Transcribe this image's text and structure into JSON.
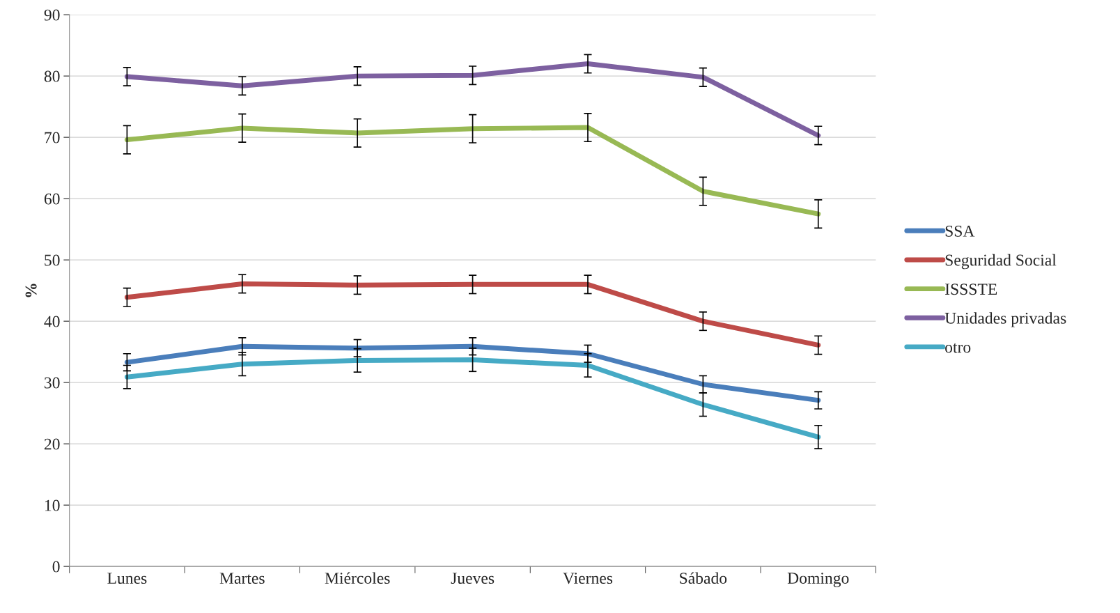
{
  "chart_data": {
    "type": "line",
    "ylabel": "%",
    "categories": [
      "Lunes",
      "Martes",
      "Miércoles",
      "Jueves",
      "Viernes",
      "Sábado",
      "Domingo"
    ],
    "ylim": [
      0,
      90
    ],
    "yticks": [
      0,
      10,
      20,
      30,
      40,
      50,
      60,
      70,
      80,
      90
    ],
    "grid": "y",
    "legend": "right",
    "marker": "none",
    "line_style": "solid",
    "series": [
      {
        "name": "SSA",
        "color": "#4a7ebb",
        "values": [
          33.3,
          35.9,
          35.6,
          35.9,
          34.7,
          29.7,
          27.1
        ],
        "errors": [
          1.4,
          1.4,
          1.4,
          1.4,
          1.4,
          1.4,
          1.4
        ]
      },
      {
        "name": "Seguridad Social",
        "color": "#be4b48",
        "values": [
          43.9,
          46.1,
          45.9,
          46.0,
          46.0,
          40.0,
          36.1
        ],
        "errors": [
          1.5,
          1.5,
          1.5,
          1.5,
          1.5,
          1.5,
          1.5
        ]
      },
      {
        "name": "ISSSTE",
        "color": "#98b954",
        "values": [
          69.6,
          71.5,
          70.7,
          71.4,
          71.6,
          61.2,
          57.5
        ],
        "errors": [
          2.3,
          2.3,
          2.3,
          2.3,
          2.3,
          2.3,
          2.3
        ]
      },
      {
        "name": "Unidades privadas",
        "color": "#7d60a0",
        "values": [
          79.9,
          78.4,
          80.0,
          80.1,
          82.0,
          79.8,
          70.3
        ],
        "errors": [
          1.5,
          1.5,
          1.5,
          1.5,
          1.5,
          1.5,
          1.5
        ]
      },
      {
        "name": "otro",
        "color": "#46aac5",
        "values": [
          30.9,
          33.0,
          33.6,
          33.7,
          32.8,
          26.4,
          21.1
        ],
        "errors": [
          1.9,
          1.9,
          1.9,
          1.9,
          1.9,
          1.9,
          1.9
        ]
      }
    ]
  }
}
